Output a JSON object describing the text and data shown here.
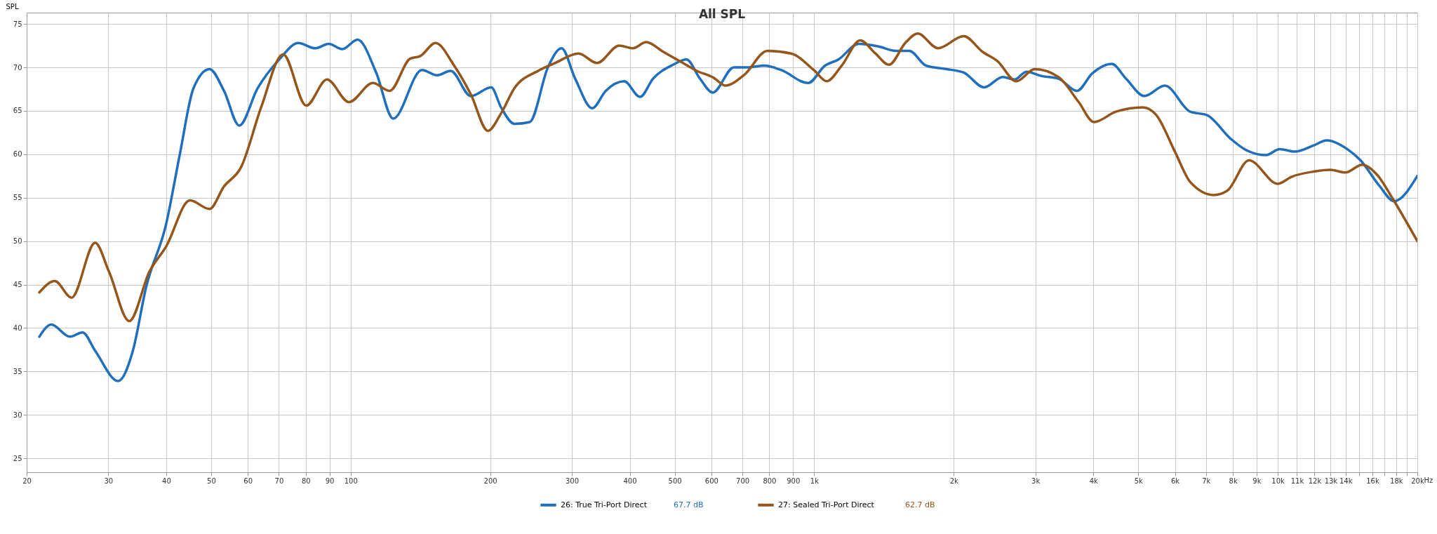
{
  "chart_data": {
    "type": "line",
    "title": "All SPL",
    "ylabel": "SPL",
    "log": "x",
    "grid": true,
    "legend": "bottom",
    "line_style": "solid",
    "xlim": [
      20,
      20000
    ],
    "ylim": [
      23.4,
      76.3
    ],
    "yticks": [
      25,
      30,
      35,
      40,
      45,
      50,
      55,
      60,
      65,
      70,
      75
    ],
    "xticks": [
      20,
      30,
      40,
      50,
      60,
      70,
      80,
      90,
      100,
      200,
      300,
      400,
      500,
      600,
      700,
      800,
      900,
      {
        "value": 1000,
        "label": "1k"
      },
      {
        "value": 2000,
        "label": "2k"
      },
      {
        "value": 3000,
        "label": "3k"
      },
      {
        "value": 4000,
        "label": "4k"
      },
      {
        "value": 5000,
        "label": "5k"
      },
      {
        "value": 6000,
        "label": "6k"
      },
      {
        "value": 7000,
        "label": "7k"
      },
      {
        "value": 8000,
        "label": "8k"
      },
      {
        "value": 9000,
        "label": "9k"
      },
      {
        "value": 10000,
        "label": "10k"
      },
      {
        "value": 11000,
        "label": "11k"
      },
      {
        "value": 12000,
        "label": "12k"
      },
      {
        "value": 13000,
        "label": "13k"
      },
      {
        "value": 14000,
        "label": "14k"
      },
      {
        "value": 15000,
        "label": null
      },
      {
        "value": 16000,
        "label": "16k"
      },
      {
        "value": 17000,
        "label": null
      },
      {
        "value": 18000,
        "label": "18k"
      },
      {
        "value": 19000,
        "label": null
      },
      {
        "value": 20000,
        "label": "20k"
      }
    ],
    "xlabel": "Hz",
    "annotations": [
      "67.7 dB",
      "62.7 dB"
    ],
    "series": [
      {
        "name": "26: True Tri-Port Direct",
        "color": "#1f6fbd",
        "x": [
          21.3,
          22.6,
          24.8,
          26.4,
          28.1,
          31.5,
          33.9,
          36.2,
          40.0,
          42.8,
          45.8,
          49.6,
          53.3,
          57.5,
          63.0,
          70.1,
          77.1,
          83.9,
          89.7,
          95.9,
          103.5,
          113.5,
          123.5,
          142.5,
          153.6,
          164.3,
          181.6,
          201,
          211,
          225.5,
          243.3,
          266.8,
          285,
          305,
          332,
          355,
          389,
          421,
          449,
          496,
          530,
          567,
          604,
          671,
          717,
          780,
          848,
          970,
          1055,
          1127,
          1247,
          1377,
          1499,
          1604,
          1742,
          1928,
          2101,
          2325,
          2550,
          2705,
          2869,
          3094,
          3363,
          3689,
          3978,
          4385,
          4704,
          5159,
          5703,
          6473,
          7035,
          7908,
          8531,
          9436,
          10090,
          10880,
          11935,
          12760,
          14110,
          15085,
          16545,
          17830,
          20000
        ],
        "values": [
          39.0,
          40.4,
          39.0,
          39.5,
          37.4,
          33.9,
          37.4,
          44.7,
          52.0,
          60.0,
          67.6,
          69.8,
          67.3,
          63.3,
          67.6,
          70.9,
          72.8,
          72.2,
          72.7,
          72.1,
          73.2,
          69.4,
          64.1,
          69.7,
          69.1,
          69.6,
          66.7,
          67.7,
          65.4,
          63.5,
          63.7,
          70.1,
          72.2,
          68.7,
          65.3,
          67.3,
          68.4,
          66.6,
          68.7,
          70.3,
          70.9,
          68.7,
          67.1,
          70.0,
          70.0,
          70.2,
          69.7,
          68.2,
          70.2,
          70.9,
          72.7,
          72.4,
          71.9,
          71.9,
          70.2,
          69.8,
          69.4,
          67.7,
          68.9,
          68.6,
          69.5,
          69.0,
          68.7,
          67.3,
          69.3,
          70.4,
          68.7,
          66.7,
          67.9,
          64.9,
          64.5,
          61.8,
          60.5,
          59.9,
          60.6,
          60.3,
          61.0,
          61.6,
          60.6,
          59.3,
          56.4,
          54.6,
          57.5
        ]
      },
      {
        "name": "27: Sealed Tri-Port Direct",
        "color": "#94561a",
        "x": [
          21.3,
          23.0,
          25.0,
          28.1,
          30.1,
          33.3,
          36.8,
          40.0,
          45.0,
          49.6,
          53.3,
          58.0,
          64.1,
          71.5,
          80.2,
          88.9,
          99.2,
          111.6,
          121.4,
          134.3,
          141.3,
          152.4,
          167.2,
          181.6,
          197.7,
          211,
          225.5,
          253.8,
          276,
          310,
          340,
          379.5,
          406,
          434,
          472,
          513,
          558,
          607,
          643,
          705,
          793,
          891,
          1002,
          1063,
          1146,
          1257,
          1355,
          1449,
          1577,
          1672,
          1849,
          2101,
          2306,
          2487,
          2727,
          2991,
          3363,
          3720,
          4013,
          4474,
          5117,
          5471,
          5998,
          6473,
          7276,
          7780,
          8668,
          10000,
          10700,
          11935,
          12980,
          13990,
          15215,
          16400,
          17690,
          20000
        ],
        "values": [
          44.1,
          45.4,
          43.5,
          49.8,
          46.5,
          40.8,
          46.5,
          49.4,
          54.7,
          53.7,
          56.3,
          58.5,
          65.4,
          71.5,
          65.6,
          68.6,
          66.0,
          68.2,
          67.3,
          71.0,
          71.3,
          72.8,
          70.2,
          66.9,
          62.7,
          64.7,
          67.6,
          69.6,
          70.5,
          71.6,
          70.5,
          72.5,
          72.2,
          72.9,
          71.8,
          70.7,
          69.6,
          68.8,
          67.9,
          69.1,
          71.9,
          71.6,
          69.6,
          68.4,
          70.2,
          73.1,
          71.6,
          70.3,
          72.9,
          73.9,
          72.2,
          73.6,
          71.8,
          70.7,
          68.4,
          69.8,
          68.9,
          66.0,
          63.7,
          64.9,
          65.4,
          64.5,
          60.3,
          56.8,
          55.3,
          55.8,
          59.3,
          56.6,
          57.4,
          58.0,
          58.2,
          57.9,
          58.8,
          57.6,
          54.9,
          50.0
        ]
      }
    ]
  }
}
